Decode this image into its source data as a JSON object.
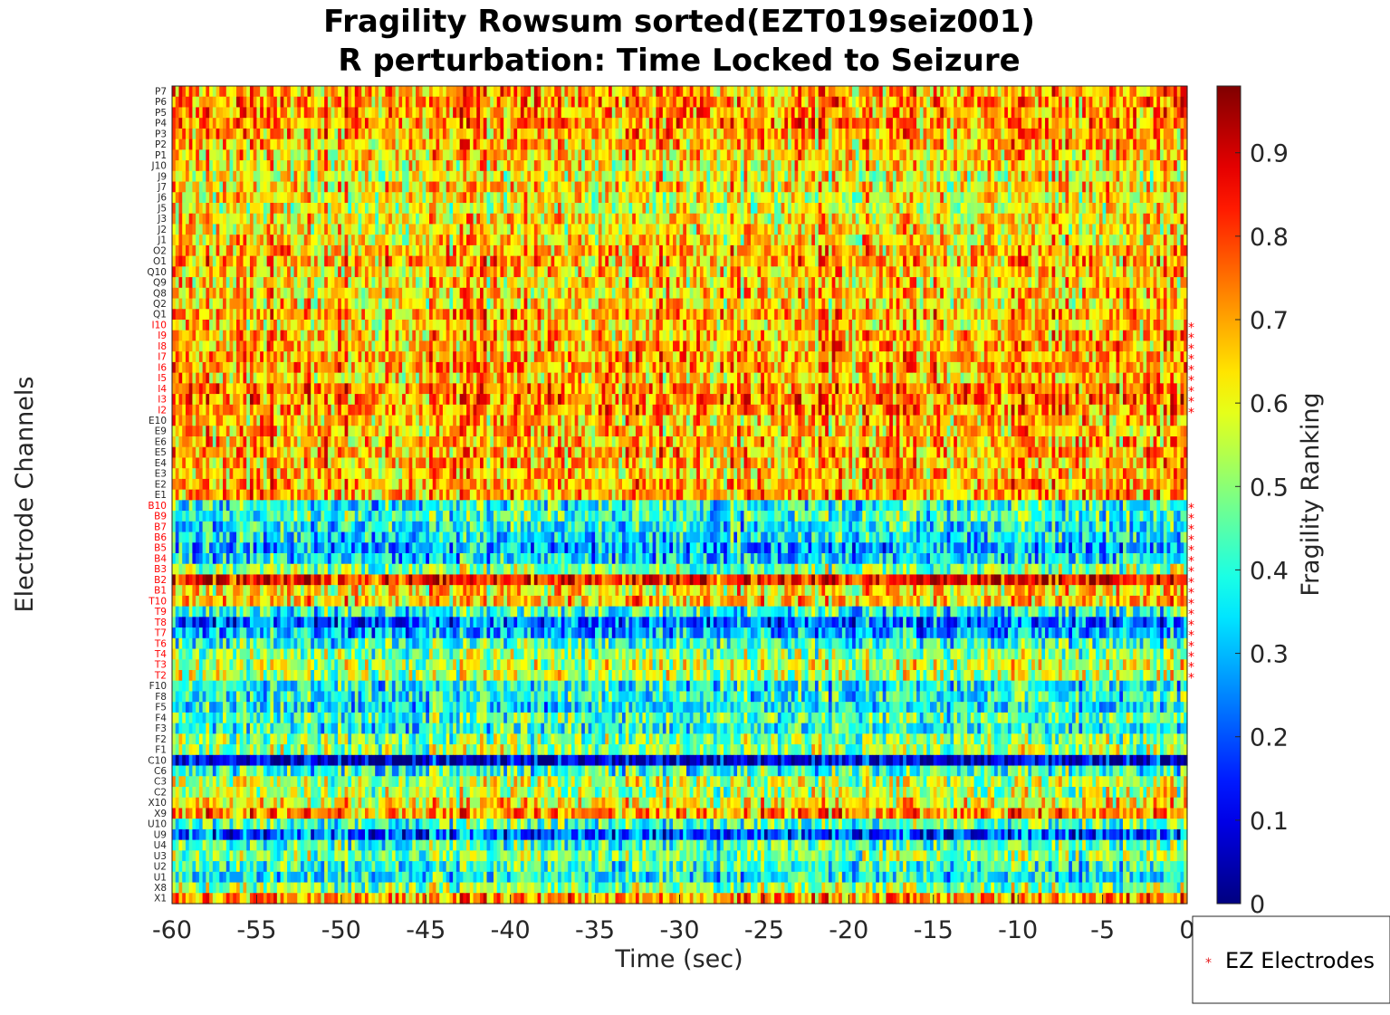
{
  "chart_data": {
    "type": "heatmap",
    "title": [
      "Fragility Rowsum sorted(EZT019seiz001)",
      "R perturbation:  Time Locked to Seizure"
    ],
    "xlabel": "Time (sec)",
    "ylabel": "Electrode Channels",
    "xlim": [
      -60,
      0
    ],
    "x_ticks": [
      "-60",
      "-55",
      "-50",
      "-45",
      "-40",
      "-35",
      "-30",
      "-25",
      "-20",
      "-15",
      "-10",
      "-5",
      "0"
    ],
    "x_tick_values": [
      -60,
      -55,
      -50,
      -45,
      -40,
      -35,
      -30,
      -25,
      -20,
      -15,
      -10,
      -5,
      0
    ],
    "channels": [
      "P7",
      "P6",
      "P5",
      "P4",
      "P3",
      "P2",
      "P1",
      "J10",
      "J9",
      "J7",
      "J6",
      "J5",
      "J3",
      "J2",
      "J1",
      "O2",
      "O1",
      "Q10",
      "Q9",
      "Q8",
      "Q2",
      "Q1",
      "I10",
      "I9",
      "I8",
      "I7",
      "I6",
      "I5",
      "I4",
      "I3",
      "I2",
      "E10",
      "E9",
      "E6",
      "E5",
      "E4",
      "E3",
      "E2",
      "E1",
      "B10",
      "B9",
      "B7",
      "B6",
      "B5",
      "B4",
      "B3",
      "B2",
      "B1",
      "T10",
      "T9",
      "T8",
      "T7",
      "T6",
      "T4",
      "T3",
      "T2",
      "F10",
      "F8",
      "F5",
      "F4",
      "F3",
      "F2",
      "F1",
      "C10",
      "C6",
      "C3",
      "C2",
      "X10",
      "X9",
      "U10",
      "U9",
      "U4",
      "U3",
      "U2",
      "U1",
      "X8",
      "X1"
    ],
    "ez_electrodes": [
      "I10",
      "I9",
      "I8",
      "I7",
      "I6",
      "I5",
      "I4",
      "I3",
      "I2",
      "B10",
      "B9",
      "B7",
      "B6",
      "B5",
      "B4",
      "B3",
      "B2",
      "B1",
      "T10",
      "T9",
      "T8",
      "T7",
      "T6",
      "T4",
      "T3",
      "T2"
    ],
    "channel_mean_fragility": [
      0.7,
      0.72,
      0.72,
      0.73,
      0.7,
      0.68,
      0.66,
      0.64,
      0.6,
      0.64,
      0.62,
      0.6,
      0.64,
      0.62,
      0.64,
      0.68,
      0.7,
      0.66,
      0.64,
      0.66,
      0.64,
      0.7,
      0.66,
      0.68,
      0.7,
      0.7,
      0.72,
      0.66,
      0.74,
      0.74,
      0.72,
      0.68,
      0.68,
      0.68,
      0.7,
      0.68,
      0.68,
      0.7,
      0.7,
      0.4,
      0.42,
      0.38,
      0.36,
      0.3,
      0.34,
      0.5,
      0.86,
      0.64,
      0.66,
      0.4,
      0.22,
      0.3,
      0.42,
      0.5,
      0.56,
      0.55,
      0.38,
      0.4,
      0.36,
      0.45,
      0.4,
      0.5,
      0.52,
      0.08,
      0.42,
      0.55,
      0.54,
      0.62,
      0.72,
      0.45,
      0.2,
      0.45,
      0.5,
      0.42,
      0.38,
      0.5,
      0.72
    ],
    "colorbar": {
      "label": "Fragility Ranking",
      "colormap": "jet",
      "range": [
        0,
        0.98
      ],
      "ticks": [
        "0",
        "0.1",
        "0.2",
        "0.3",
        "0.4",
        "0.5",
        "0.6",
        "0.7",
        "0.8",
        "0.9"
      ],
      "tick_values": [
        0,
        0.1,
        0.2,
        0.3,
        0.4,
        0.5,
        0.6,
        0.7,
        0.8,
        0.9
      ]
    },
    "legend": {
      "entries": [
        {
          "marker": "*",
          "label": "EZ Electrodes",
          "color": "#e41a1c"
        }
      ],
      "placement": "bottom-right"
    },
    "ez_color": "#ff0000",
    "normal_label_color": "#262626"
  }
}
